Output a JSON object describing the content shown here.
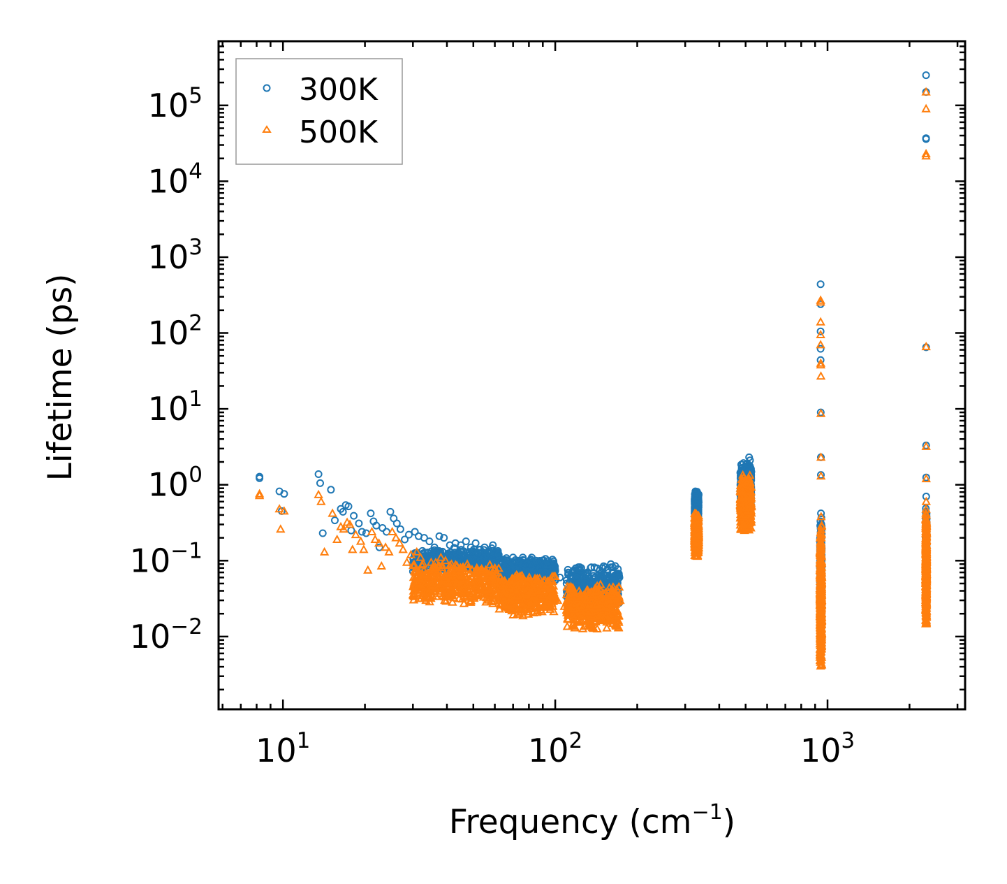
{
  "chart_data": {
    "type": "scatter",
    "title": "",
    "xlabel": "Frequency (cm",
    "xlabel_sup": "−1",
    "xlabel_end": ")",
    "ylabel": "Lifetime (ps)",
    "xscale": "log",
    "yscale": "log",
    "xlim": [
      5.8,
      3200
    ],
    "ylim": [
      0.0011,
      700000
    ],
    "legend_position": "top-left",
    "x_ticks": [
      {
        "value": 10,
        "base": "10",
        "exp": "1"
      },
      {
        "value": 100,
        "base": "10",
        "exp": "2"
      },
      {
        "value": 1000,
        "base": "10",
        "exp": "3"
      }
    ],
    "y_ticks": [
      {
        "value": 0.01,
        "base": "10",
        "exp": "−2"
      },
      {
        "value": 0.1,
        "base": "10",
        "exp": "−1"
      },
      {
        "value": 1,
        "base": "10",
        "exp": "0"
      },
      {
        "value": 10,
        "base": "10",
        "exp": "1"
      },
      {
        "value": 100,
        "base": "10",
        "exp": "2"
      },
      {
        "value": 1000,
        "base": "10",
        "exp": "3"
      },
      {
        "value": 10000,
        "base": "10",
        "exp": "4"
      },
      {
        "value": 100000,
        "base": "10",
        "exp": "5"
      }
    ],
    "series": [
      {
        "name": "300K",
        "marker": "circle",
        "color": "#1f77b4",
        "points": [
          [
            8.2,
            1.28
          ],
          [
            8.2,
            1.22
          ],
          [
            9.7,
            0.82
          ],
          [
            10.1,
            0.76
          ],
          [
            9.9,
            0.45
          ],
          [
            13.5,
            1.38
          ],
          [
            13.7,
            1.05
          ],
          [
            14.0,
            0.23
          ],
          [
            15.0,
            0.86
          ],
          [
            15.5,
            0.34
          ],
          [
            16.3,
            0.48
          ],
          [
            16.6,
            0.44
          ],
          [
            17.0,
            0.54
          ],
          [
            17.4,
            0.52
          ],
          [
            17.8,
            0.25
          ],
          [
            18.2,
            0.39
          ],
          [
            19.0,
            0.31
          ],
          [
            19.5,
            0.24
          ],
          [
            20.2,
            0.23
          ],
          [
            21.0,
            0.42
          ],
          [
            21.5,
            0.33
          ],
          [
            22.0,
            0.29
          ],
          [
            22.6,
            0.15
          ],
          [
            23.2,
            0.27
          ],
          [
            24.0,
            0.24
          ],
          [
            24.8,
            0.44
          ],
          [
            25.5,
            0.36
          ],
          [
            26.2,
            0.31
          ],
          [
            27.0,
            0.26
          ],
          [
            28.0,
            0.19
          ],
          [
            29.0,
            0.22
          ],
          [
            30.5,
            0.24
          ],
          [
            31.5,
            0.21
          ],
          [
            33.0,
            0.2
          ],
          [
            34.5,
            0.18
          ],
          [
            36.0,
            0.15
          ],
          [
            37.5,
            0.21
          ],
          [
            39.0,
            0.2
          ],
          [
            41.0,
            0.16
          ],
          [
            43.0,
            0.17
          ],
          [
            45.0,
            0.16
          ],
          [
            47.0,
            0.18
          ],
          [
            49.0,
            0.15
          ],
          [
            51.0,
            0.17
          ],
          [
            53.0,
            0.14
          ],
          [
            55.0,
            0.15
          ],
          [
            57.0,
            0.13
          ],
          [
            59.0,
            0.16
          ],
          [
            62.0,
            0.12
          ],
          [
            65.0,
            0.1
          ],
          [
            67.0,
            0.09
          ],
          [
            70.0,
            0.11
          ],
          [
            73.0,
            0.1
          ],
          [
            76.0,
            0.11
          ],
          [
            79.0,
            0.09
          ],
          [
            82.0,
            0.11
          ],
          [
            85.0,
            0.1
          ],
          [
            88.0,
            0.08
          ],
          [
            92.0,
            0.07
          ],
          [
            96.0,
            0.065
          ],
          [
            100.0,
            0.055
          ],
          [
            104.0,
            0.06
          ],
          [
            110.0,
            0.05
          ],
          [
            117.0,
            0.03
          ],
          [
            124.0,
            0.048
          ],
          [
            132.0,
            0.042
          ],
          [
            140.0,
            0.052
          ],
          [
            148.0,
            0.06
          ],
          [
            155.0,
            0.075
          ],
          [
            160.0,
            0.09
          ],
          [
            166.0,
            0.085
          ],
          [
            172.0,
            0.06
          ],
          [
            327,
            0.82
          ],
          [
            329,
            0.7
          ],
          [
            330,
            0.6
          ],
          [
            331,
            0.5
          ],
          [
            332,
            0.45
          ],
          [
            333,
            0.4
          ],
          [
            334,
            0.35
          ],
          [
            335,
            0.6
          ],
          [
            480,
            1.2
          ],
          [
            483,
            0.9
          ],
          [
            487,
            0.75
          ],
          [
            491,
            0.6
          ],
          [
            495,
            0.5
          ],
          [
            500,
            0.8
          ],
          [
            505,
            1.0
          ],
          [
            510,
            1.4
          ],
          [
            515,
            2.3
          ],
          [
            519,
            2.1
          ],
          [
            522,
            0.9
          ],
          [
            943,
            440
          ],
          [
            943,
            240
          ],
          [
            943,
            105
          ],
          [
            943,
            62
          ],
          [
            943,
            44
          ],
          [
            944,
            9.0
          ],
          [
            945,
            2.3
          ],
          [
            945,
            1.35
          ],
          [
            946,
            0.42
          ],
          [
            947,
            0.25
          ],
          [
            948,
            0.15
          ],
          [
            948,
            0.08
          ],
          [
            949,
            0.04
          ],
          [
            2300,
            250000
          ],
          [
            2300,
            150000
          ],
          [
            2300,
            37000
          ],
          [
            2300,
            36000
          ],
          [
            2302,
            65
          ],
          [
            2302,
            3.3
          ],
          [
            2303,
            1.25
          ],
          [
            2303,
            0.7
          ],
          [
            2304,
            0.35
          ],
          [
            2305,
            0.25
          ],
          [
            2305,
            0.15
          ]
        ],
        "bands": [
          {
            "x": [
              30,
              62
            ],
            "y": [
              0.07,
              0.15
            ]
          },
          {
            "x": [
              62,
              100
            ],
            "y": [
              0.05,
              0.11
            ]
          },
          {
            "x": [
              110,
              172
            ],
            "y": [
              0.02,
              0.09
            ]
          },
          {
            "x": [
              325,
              336
            ],
            "y": [
              0.3,
              0.85
            ]
          },
          {
            "x": [
              478,
              525
            ],
            "y": [
              0.4,
              2.0
            ]
          },
          {
            "x": [
              938,
              952
            ],
            "y": [
              0.01,
              0.4
            ]
          },
          {
            "x": [
              2295,
              2310
            ],
            "y": [
              0.05,
              0.5
            ]
          }
        ]
      },
      {
        "name": "500K",
        "marker": "triangle",
        "color": "#ff7f0e",
        "points": [
          [
            8.2,
            0.76
          ],
          [
            8.2,
            0.72
          ],
          [
            9.7,
            0.48
          ],
          [
            9.8,
            0.26
          ],
          [
            10.1,
            0.45
          ],
          [
            13.5,
            0.74
          ],
          [
            13.8,
            0.6
          ],
          [
            14.2,
            0.13
          ],
          [
            15.2,
            0.42
          ],
          [
            15.8,
            0.19
          ],
          [
            16.3,
            0.28
          ],
          [
            16.7,
            0.26
          ],
          [
            17.2,
            0.32
          ],
          [
            17.6,
            0.3
          ],
          [
            18.0,
            0.14
          ],
          [
            18.5,
            0.22
          ],
          [
            19.3,
            0.18
          ],
          [
            19.8,
            0.14
          ],
          [
            20.5,
            0.075
          ],
          [
            21.2,
            0.24
          ],
          [
            21.8,
            0.19
          ],
          [
            22.5,
            0.17
          ],
          [
            23.0,
            0.085
          ],
          [
            23.8,
            0.15
          ],
          [
            24.5,
            0.13
          ],
          [
            25.2,
            0.24
          ],
          [
            26.0,
            0.2
          ],
          [
            26.8,
            0.17
          ],
          [
            27.6,
            0.14
          ],
          [
            28.5,
            0.095
          ],
          [
            29.5,
            0.12
          ],
          [
            31.0,
            0.13
          ],
          [
            32.0,
            0.11
          ],
          [
            33.5,
            0.03
          ],
          [
            35.0,
            0.095
          ],
          [
            36.5,
            0.08
          ],
          [
            38.0,
            0.11
          ],
          [
            39.5,
            0.1
          ],
          [
            41.5,
            0.08
          ],
          [
            43.5,
            0.085
          ],
          [
            45.5,
            0.08
          ],
          [
            47.5,
            0.09
          ],
          [
            49.5,
            0.075
          ],
          [
            51.5,
            0.08
          ],
          [
            53.5,
            0.07
          ],
          [
            55.5,
            0.075
          ],
          [
            57.5,
            0.065
          ],
          [
            60.0,
            0.08
          ],
          [
            63.0,
            0.06
          ],
          [
            66.0,
            0.05
          ],
          [
            68.0,
            0.045
          ],
          [
            71.0,
            0.055
          ],
          [
            74.0,
            0.05
          ],
          [
            77.0,
            0.055
          ],
          [
            80.0,
            0.045
          ],
          [
            83.0,
            0.04
          ],
          [
            86.0,
            0.05
          ],
          [
            90.0,
            0.035
          ],
          [
            94.0,
            0.03
          ],
          [
            98.0,
            0.025
          ],
          [
            102.0,
            0.03
          ],
          [
            108.0,
            0.025
          ],
          [
            118.0,
            0.013
          ],
          [
            126.0,
            0.024
          ],
          [
            134.0,
            0.021
          ],
          [
            142.0,
            0.026
          ],
          [
            150.0,
            0.03
          ],
          [
            157.0,
            0.038
          ],
          [
            163.0,
            0.045
          ],
          [
            168.0,
            0.042
          ],
          [
            173.0,
            0.03
          ],
          [
            327,
            0.4
          ],
          [
            329,
            0.35
          ],
          [
            330,
            0.3
          ],
          [
            331,
            0.25
          ],
          [
            332,
            0.2
          ],
          [
            333,
            0.15
          ],
          [
            334,
            0.13
          ],
          [
            335,
            0.28
          ],
          [
            480,
            0.6
          ],
          [
            483,
            0.45
          ],
          [
            487,
            0.38
          ],
          [
            491,
            0.3
          ],
          [
            495,
            0.25
          ],
          [
            500,
            0.4
          ],
          [
            505,
            0.5
          ],
          [
            510,
            0.7
          ],
          [
            515,
            1.2
          ],
          [
            519,
            1.05
          ],
          [
            522,
            0.45
          ],
          [
            943,
            270
          ],
          [
            943,
            255
          ],
          [
            943,
            140
          ],
          [
            943,
            95
          ],
          [
            943,
            70
          ],
          [
            944,
            40
          ],
          [
            944,
            38
          ],
          [
            945,
            27
          ],
          [
            945,
            8.7
          ],
          [
            946,
            2.3
          ],
          [
            946,
            1.3
          ],
          [
            947,
            0.38
          ],
          [
            948,
            0.2
          ],
          [
            948,
            0.1
          ],
          [
            949,
            0.05
          ],
          [
            2300,
            150000
          ],
          [
            2300,
            90000
          ],
          [
            2300,
            23000
          ],
          [
            2300,
            21500
          ],
          [
            2302,
            66
          ],
          [
            2302,
            3.2
          ],
          [
            2303,
            1.2
          ],
          [
            2303,
            0.6
          ],
          [
            2304,
            0.3
          ],
          [
            2305,
            0.2
          ],
          [
            2305,
            0.12
          ]
        ],
        "bands": [
          {
            "x": [
              30,
              62
            ],
            "y": [
              0.025,
              0.1
            ]
          },
          {
            "x": [
              62,
              100
            ],
            "y": [
              0.018,
              0.07
            ]
          },
          {
            "x": [
              110,
              172
            ],
            "y": [
              0.012,
              0.05
            ]
          },
          {
            "x": [
              325,
              336
            ],
            "y": [
              0.11,
              0.45
            ]
          },
          {
            "x": [
              478,
              525
            ],
            "y": [
              0.22,
              1.4
            ]
          },
          {
            "x": [
              938,
              952
            ],
            "y": [
              0.0032,
              0.3
            ]
          },
          {
            "x": [
              2295,
              2310
            ],
            "y": [
              0.012,
              0.5
            ]
          }
        ]
      }
    ]
  }
}
